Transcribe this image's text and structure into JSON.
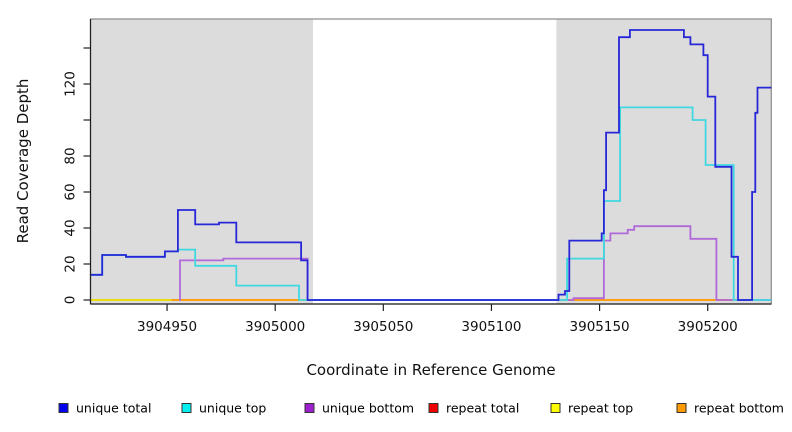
{
  "chart_data": {
    "type": "line",
    "subtype": "step-coverage-plot",
    "title": "",
    "xlabel": "Coordinate in Reference Genome",
    "ylabel": "Read Coverage Depth",
    "xlim": [
      3904914.6,
      3905229.4
    ],
    "ylim": [
      -2.2,
      156
    ],
    "grid": false,
    "legend_position": "bottom",
    "x_ticks": [
      3904950,
      3905000,
      3905050,
      3905100,
      3905150,
      3905200
    ],
    "y_ticks": [
      0,
      20,
      40,
      60,
      80,
      100,
      120,
      140
    ],
    "y_labeled_ticks": [
      0,
      20,
      40,
      60,
      80,
      120
    ],
    "background_regions": [
      {
        "name": "shaded-left",
        "x0": 3904914.6,
        "x1": 3905017.5,
        "color": "#dcdcdc"
      },
      {
        "name": "unshaded-gap",
        "x0": 3905017.5,
        "x1": 3905130.0,
        "color": "#ffffff"
      },
      {
        "name": "shaded-right",
        "x0": 3905130.0,
        "x1": 3905229.4,
        "color": "#dcdcdc"
      }
    ],
    "series": [
      {
        "name": "repeat total",
        "color": "#d23b6b",
        "legend_color": "#ee0000",
        "x_end": 3905222,
        "steps": [
          [
            3904914.6,
            0
          ]
        ]
      },
      {
        "name": "repeat top",
        "color": "#eeee00",
        "legend_color": "#ffff00",
        "x_end": 3905222,
        "steps": [
          [
            3904914.6,
            0
          ]
        ]
      },
      {
        "name": "repeat bottom",
        "color": "#ff9913",
        "legend_color": "#ff9900",
        "x_end": 3905222,
        "steps": [
          [
            3904952,
            0
          ]
        ]
      },
      {
        "name": "unique bottom",
        "color": "#b069d9",
        "legend_color": "#a020d0",
        "x_end": 3905229.4,
        "steps": [
          [
            3904955.5,
            0
          ],
          [
            3904956,
            22
          ],
          [
            3904976,
            23
          ],
          [
            3905015,
            0
          ],
          [
            3905138,
            1
          ],
          [
            3905152,
            33
          ],
          [
            3905155,
            37
          ],
          [
            3905163,
            39
          ],
          [
            3905166,
            41
          ],
          [
            3905192,
            34
          ],
          [
            3905204,
            0
          ]
        ]
      },
      {
        "name": "unique top",
        "color": "#40d8e0",
        "legend_color": "#00eeee",
        "x_end": 3905229.4,
        "steps": [
          [
            3904914.6,
            14
          ],
          [
            3904920,
            25
          ],
          [
            3904931,
            24
          ],
          [
            3904949,
            27
          ],
          [
            3904955,
            28
          ],
          [
            3904963,
            19
          ],
          [
            3904982,
            8
          ],
          [
            3905011,
            0
          ],
          [
            3905135,
            23
          ],
          [
            3905152,
            55
          ],
          [
            3905159.5,
            107
          ],
          [
            3905193,
            100
          ],
          [
            3905199,
            75
          ],
          [
            3905212,
            0
          ]
        ]
      },
      {
        "name": "unique total",
        "color": "#2727d8",
        "legend_color": "#0000ee",
        "x_end": 3905229.4,
        "steps": [
          [
            3904914.6,
            14
          ],
          [
            3904920,
            25
          ],
          [
            3904931,
            24
          ],
          [
            3904949,
            27
          ],
          [
            3904955,
            50
          ],
          [
            3904963,
            42
          ],
          [
            3904974,
            43
          ],
          [
            3904982,
            32
          ],
          [
            3905012,
            22
          ],
          [
            3905015,
            0
          ],
          [
            3905131,
            3
          ],
          [
            3905134,
            5
          ],
          [
            3905136,
            33
          ],
          [
            3905151,
            37
          ],
          [
            3905152,
            61
          ],
          [
            3905153,
            93
          ],
          [
            3905159,
            146
          ],
          [
            3905164,
            150
          ],
          [
            3905189,
            146
          ],
          [
            3905192,
            142
          ],
          [
            3905198,
            136
          ],
          [
            3905200,
            113
          ],
          [
            3905203.5,
            74
          ],
          [
            3905211,
            24
          ],
          [
            3905214,
            0
          ],
          [
            3905220.5,
            60
          ],
          [
            3905222,
            104
          ],
          [
            3905223,
            118
          ]
        ]
      }
    ],
    "legend": {
      "swatch_x": [
        59,
        182,
        305,
        429,
        551,
        677
      ],
      "items": [
        {
          "label": "unique total",
          "color": "#0000ee"
        },
        {
          "label": "unique top",
          "color": "#00eeee"
        },
        {
          "label": "unique bottom",
          "color": "#a020d0"
        },
        {
          "label": "repeat total",
          "color": "#ee0000"
        },
        {
          "label": "repeat top",
          "color": "#ffff00"
        },
        {
          "label": "repeat bottom",
          "color": "#ff9900"
        }
      ]
    }
  }
}
